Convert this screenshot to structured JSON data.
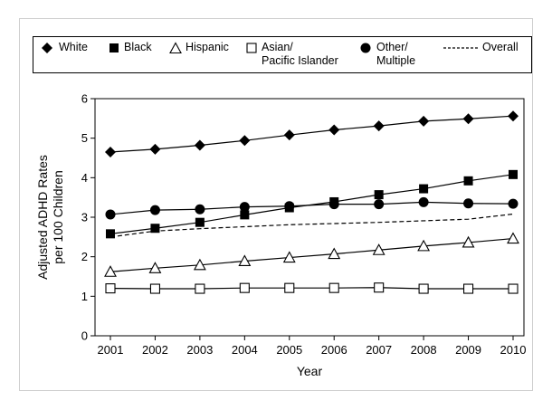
{
  "chart_data": {
    "type": "line",
    "xlabel": "Year",
    "ylabel": "Adjusted ADHD Rates per 100 Children",
    "ylabel_lines": [
      "Adjusted ADHD Rates",
      "per 100 Children"
    ],
    "categories": [
      "2001",
      "2002",
      "2003",
      "2004",
      "2005",
      "2006",
      "2007",
      "2008",
      "2009",
      "2010"
    ],
    "ylim": [
      0,
      6
    ],
    "yticks": [
      "0",
      "1",
      "2",
      "3",
      "4",
      "5",
      "6"
    ],
    "grid": false,
    "legend_position": "top",
    "series": [
      {
        "name": "White",
        "marker": "diamond",
        "values": [
          4.65,
          4.72,
          4.82,
          4.94,
          5.08,
          5.21,
          5.31,
          5.43,
          5.49,
          5.56
        ]
      },
      {
        "name": "Black",
        "marker": "square-filled",
        "values": [
          2.58,
          2.72,
          2.87,
          3.06,
          3.24,
          3.39,
          3.57,
          3.72,
          3.92,
          4.08
        ]
      },
      {
        "name": "Hispanic",
        "marker": "triangle-open",
        "values": [
          1.62,
          1.71,
          1.79,
          1.89,
          1.98,
          2.07,
          2.17,
          2.27,
          2.36,
          2.46
        ]
      },
      {
        "name": "Asian/\nPacific Islander",
        "marker": "square-open",
        "values": [
          1.2,
          1.19,
          1.19,
          1.21,
          1.21,
          1.21,
          1.22,
          1.19,
          1.19,
          1.19
        ]
      },
      {
        "name": "Other/\nMultiple",
        "marker": "circle-filled",
        "values": [
          3.07,
          3.18,
          3.2,
          3.26,
          3.28,
          3.33,
          3.33,
          3.38,
          3.35,
          3.34
        ]
      },
      {
        "name": "Overall",
        "marker": "none",
        "dashed": true,
        "values": [
          2.5,
          2.65,
          2.71,
          2.76,
          2.81,
          2.84,
          2.87,
          2.91,
          2.95,
          3.08
        ]
      }
    ]
  }
}
